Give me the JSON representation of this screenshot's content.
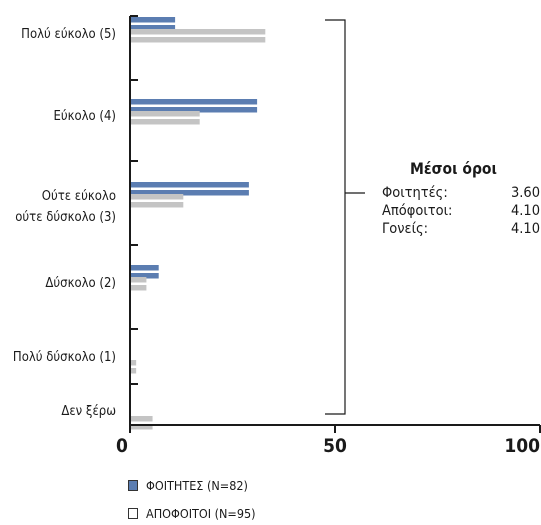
{
  "chart_data": {
    "type": "bar",
    "orientation": "horizontal",
    "categories": [
      "Πολύ εύκολο (5)",
      "Εύκολο (4)",
      "Ούτε εύκολο ούτε δύσκολο (3)",
      "Δύσκολο (2)",
      "Πολύ δύσκολο (1)",
      "Δεν ξέρω"
    ],
    "category_lines": [
      [
        "Πολύ εύκολο (5)"
      ],
      [
        "Εύκολο (4)"
      ],
      [
        "Ούτε εύκολο",
        "ούτε δύσκολο (3)"
      ],
      [
        "Δύσκολο (2)"
      ],
      [
        "Πολύ δύσκολο (1)"
      ],
      [
        "Δεν ξέρω"
      ]
    ],
    "series": [
      {
        "name": "ΦΟΙΤΗΤΕΣ (Ν=82)",
        "values": [
          11,
          31,
          29,
          7,
          0,
          0
        ],
        "color": "#5b7db1"
      },
      {
        "name": "ΑΠΟΦΟΙΤΟΙ (Ν=95)",
        "values": [
          33,
          17,
          13,
          4,
          1.5,
          5.5
        ],
        "color": "#c4c4c4"
      }
    ],
    "xlim": [
      0,
      100
    ],
    "xticks": [
      "0",
      "50",
      "100"
    ],
    "legend_position": "bottom-left",
    "means": {
      "title": "Μέσοι όροι",
      "rows": [
        {
          "label": "Φοιτητές:",
          "value": "3.60"
        },
        {
          "label": "Απόφοιτοι:",
          "value": "4.10"
        },
        {
          "label": "Γονείς:",
          "value": "4.10"
        }
      ]
    }
  }
}
